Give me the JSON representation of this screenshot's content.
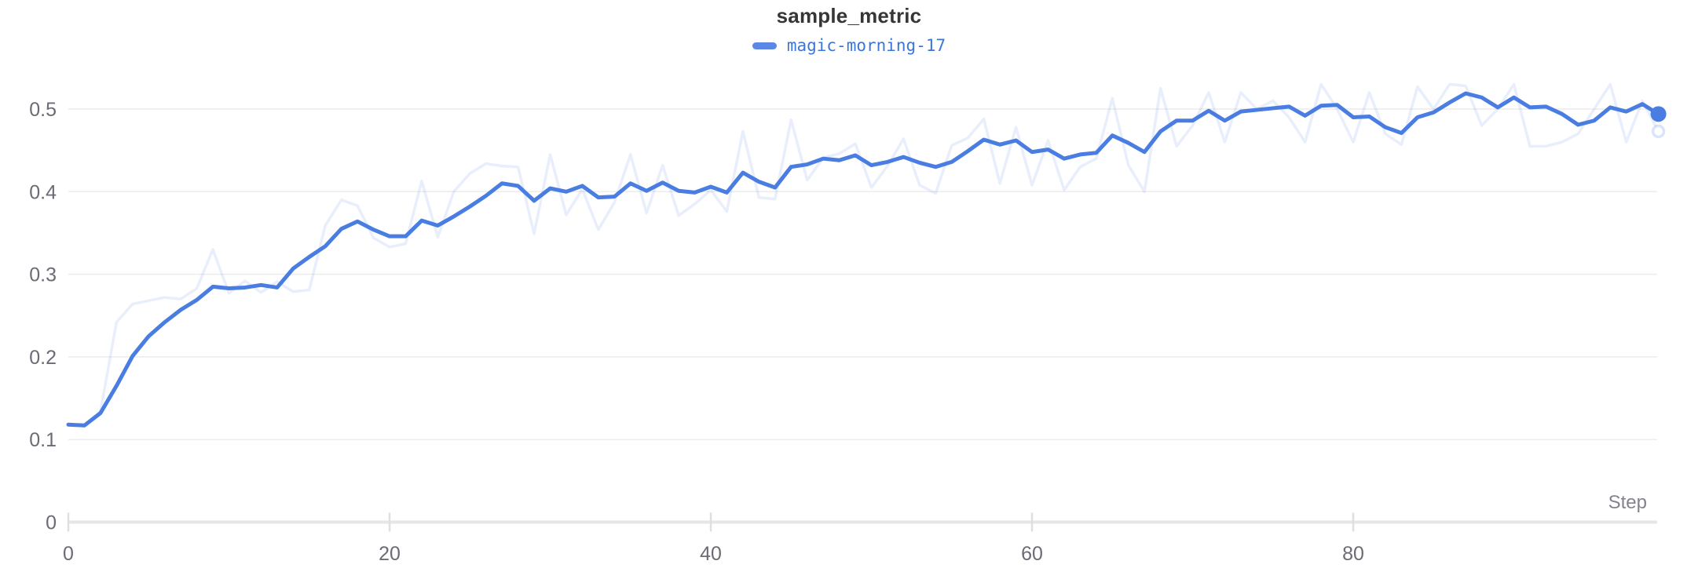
{
  "chart_data": {
    "type": "line",
    "title": "sample_metric",
    "xlabel": "Step",
    "ylabel": "",
    "series_name": "magic-morning-17",
    "legend_position": "top-center",
    "grid": "horizontal",
    "x_ticks": [
      0,
      20,
      40,
      60,
      80
    ],
    "y_ticks": [
      0,
      0.1,
      0.2,
      0.3,
      0.4,
      0.5
    ],
    "xlim": [
      0,
      99
    ],
    "ylim": [
      0,
      0.55
    ],
    "x": [
      0,
      1,
      2,
      3,
      4,
      5,
      6,
      7,
      8,
      9,
      10,
      11,
      12,
      13,
      14,
      15,
      16,
      17,
      18,
      19,
      20,
      21,
      22,
      23,
      24,
      25,
      26,
      27,
      28,
      29,
      30,
      31,
      32,
      33,
      34,
      35,
      36,
      37,
      38,
      39,
      40,
      41,
      42,
      43,
      44,
      45,
      46,
      47,
      48,
      49,
      50,
      51,
      52,
      53,
      54,
      55,
      56,
      57,
      58,
      59,
      60,
      61,
      62,
      63,
      64,
      65,
      66,
      67,
      68,
      69,
      70,
      71,
      72,
      73,
      74,
      75,
      76,
      77,
      78,
      79,
      80,
      81,
      82,
      83,
      84,
      85,
      86,
      87,
      88,
      89,
      90,
      91,
      92,
      93,
      94,
      95,
      96,
      97,
      98,
      99
    ],
    "series": [
      {
        "name": "magic-morning-17 (raw)",
        "style": "faint",
        "values": [
          0.118,
          0.117,
          0.134,
          0.242,
          0.264,
          0.268,
          0.272,
          0.27,
          0.283,
          0.33,
          0.277,
          0.292,
          0.278,
          0.291,
          0.279,
          0.281,
          0.359,
          0.39,
          0.383,
          0.344,
          0.333,
          0.337,
          0.413,
          0.345,
          0.4,
          0.422,
          0.434,
          0.431,
          0.43,
          0.349,
          0.445,
          0.372,
          0.403,
          0.354,
          0.387,
          0.445,
          0.374,
          0.432,
          0.371,
          0.385,
          0.402,
          0.376,
          0.473,
          0.393,
          0.391,
          0.487,
          0.414,
          0.441,
          0.446,
          0.458,
          0.405,
          0.431,
          0.464,
          0.408,
          0.398,
          0.456,
          0.465,
          0.488,
          0.41,
          0.478,
          0.408,
          0.462,
          0.402,
          0.43,
          0.44,
          0.513,
          0.432,
          0.4,
          0.525,
          0.455,
          0.48,
          0.52,
          0.46,
          0.52,
          0.5,
          0.51,
          0.49,
          0.46,
          0.53,
          0.5,
          0.46,
          0.52,
          0.47,
          0.457,
          0.527,
          0.5,
          0.53,
          0.528,
          0.48,
          0.5,
          0.53,
          0.455,
          0.455,
          0.46,
          0.47,
          0.5,
          0.53,
          0.46,
          0.51,
          0.473
        ]
      },
      {
        "name": "magic-morning-17 (smoothed)",
        "style": "bold",
        "values": [
          0.118,
          0.117,
          0.132,
          0.165,
          0.201,
          0.225,
          0.242,
          0.257,
          0.269,
          0.285,
          0.283,
          0.284,
          0.287,
          0.284,
          0.307,
          0.321,
          0.334,
          0.355,
          0.364,
          0.354,
          0.346,
          0.346,
          0.365,
          0.359,
          0.37,
          0.382,
          0.395,
          0.41,
          0.407,
          0.389,
          0.404,
          0.4,
          0.407,
          0.393,
          0.394,
          0.41,
          0.401,
          0.411,
          0.401,
          0.399,
          0.406,
          0.399,
          0.423,
          0.412,
          0.405,
          0.43,
          0.433,
          0.44,
          0.438,
          0.444,
          0.432,
          0.436,
          0.442,
          0.435,
          0.43,
          0.436,
          0.449,
          0.463,
          0.457,
          0.462,
          0.448,
          0.451,
          0.44,
          0.445,
          0.447,
          0.468,
          0.459,
          0.448,
          0.473,
          0.486,
          0.486,
          0.498,
          0.486,
          0.497,
          0.499,
          0.501,
          0.503,
          0.492,
          0.504,
          0.505,
          0.49,
          0.491,
          0.478,
          0.471,
          0.49,
          0.496,
          0.508,
          0.519,
          0.514,
          0.502,
          0.514,
          0.502,
          0.503,
          0.494,
          0.481,
          0.486,
          0.502,
          0.497,
          0.506,
          0.494
        ]
      }
    ],
    "colors": {
      "line": "#4a7de2",
      "legend_swatch": "#5b87e5",
      "legend_text": "#3b76d8",
      "title": "#363636",
      "tick_label": "#6b6b76",
      "axis_label": "#83838f",
      "axis_line": "#e6e6e6",
      "tick_mark": "#dedee3",
      "gridline": "#ececec"
    }
  }
}
